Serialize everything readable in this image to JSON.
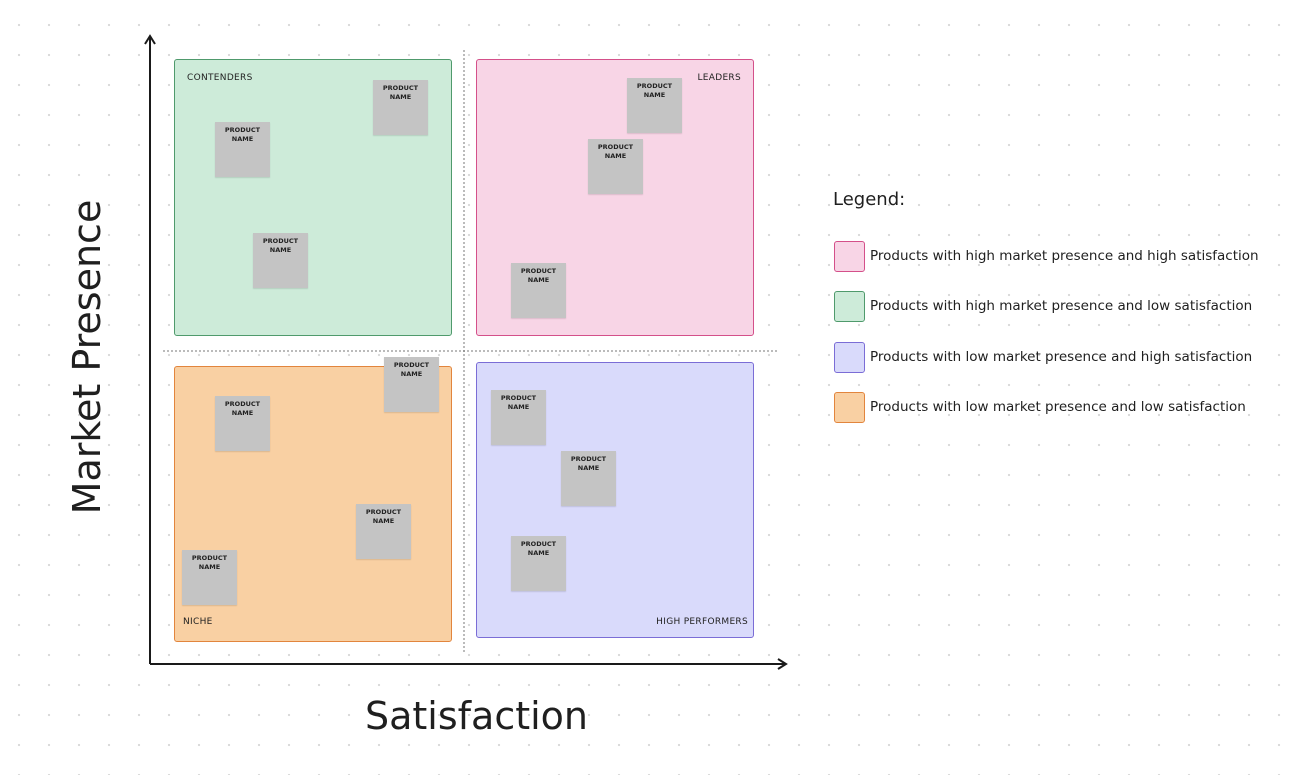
{
  "axes": {
    "x_label": "Satisfaction",
    "y_label": "Market Presence"
  },
  "quadrants": [
    {
      "label": "CONTENDERS",
      "fill": "#cdebd9",
      "border": "#4f9a6c"
    },
    {
      "label": "LEADERS",
      "fill": "#f8d5e6",
      "border": "#d4508a"
    },
    {
      "label": "NICHE",
      "fill": "#f9d0a3",
      "border": "#e2853d"
    },
    {
      "label": "HIGH PERFORMERS",
      "fill": "#d9dafb",
      "border": "#7b6dd6"
    }
  ],
  "note": {
    "line1": "PRODUCT",
    "line2": "NAME"
  },
  "legend": {
    "title": "Legend:",
    "items": [
      {
        "text": "Products with high market presence and high satisfaction",
        "fill": "#f8d5e6",
        "border": "#d4508a"
      },
      {
        "text": "Products with high market presence and low satisfaction",
        "fill": "#cdebd9",
        "border": "#4f9a6c"
      },
      {
        "text": "Products with low market presence and high satisfaction",
        "fill": "#d9dafb",
        "border": "#7b6dd6"
      },
      {
        "text": "Products with low market presence and low satisfaction",
        "fill": "#f9d0a3",
        "border": "#e2853d"
      }
    ]
  }
}
